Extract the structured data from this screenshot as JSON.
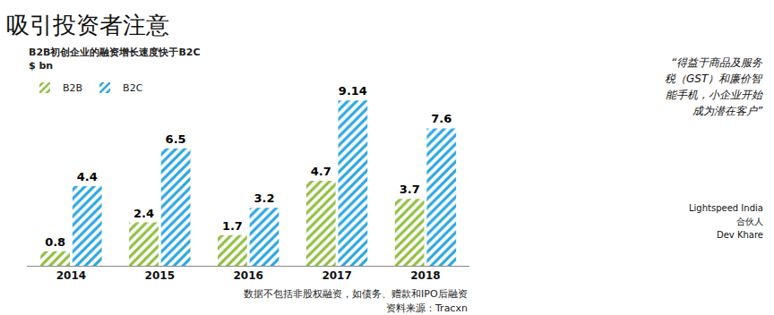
{
  "chart_data": {
    "type": "bar",
    "title": "吸引投资者注意",
    "subtitle": "B2B初创企业的融资增长速度快于B2C",
    "ylabel": "$ bn",
    "categories": [
      "2014",
      "2015",
      "2016",
      "2017",
      "2018"
    ],
    "series": [
      {
        "name": "B2B",
        "color": "#8fbf3f",
        "values": [
          0.8,
          2.4,
          1.7,
          4.7,
          3.7
        ]
      },
      {
        "name": "B2C",
        "color": "#2aa6df",
        "values": [
          4.4,
          6.5,
          3.2,
          9.14,
          7.6
        ]
      }
    ],
    "ylim": [
      0,
      10
    ],
    "tick_labels": "x",
    "data_labels": true,
    "legend": "top-left",
    "grid": false,
    "annotations": [
      "数据不包括非股权融资，如债务、赠款和IPO后融资",
      "资料来源：Tracxn"
    ]
  },
  "quote": {
    "lines": [
      "“得益于商品及服务",
      "税（GST）和廉价智",
      "能手机，小企业开始",
      "成为潜在客户”"
    ],
    "attribution": [
      "Lightspeed India",
      "合伙人",
      "Dev Khare"
    ]
  }
}
